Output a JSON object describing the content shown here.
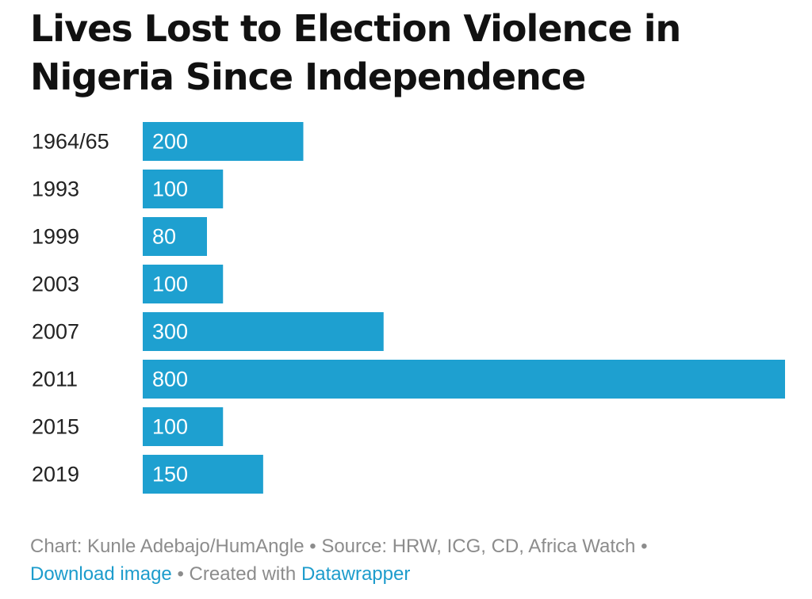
{
  "chart_data": {
    "type": "bar",
    "orientation": "horizontal",
    "title": "Lives Lost to Election Violence in Nigeria Since Independence",
    "categories": [
      "1964/65",
      "1993",
      "1999",
      "2003",
      "2007",
      "2011",
      "2015",
      "2019"
    ],
    "values": [
      200,
      100,
      80,
      100,
      300,
      800,
      100,
      150
    ],
    "xlim": [
      0,
      800
    ],
    "grid": false,
    "legend": "none",
    "bar_color": "#1ea0d0",
    "value_label_color": "#ffffff"
  },
  "footer": {
    "credit": "Chart: Kunle Adebajo/HumAngle",
    "separator": " • ",
    "source": "Source: HRW, ICG, CD, Africa Watch",
    "download_link": "Download image",
    "created_with": "Created with ",
    "tool_link": "Datawrapper"
  },
  "colors": {
    "link": "#1d9ccc",
    "footer_text": "#8c8c8c"
  }
}
